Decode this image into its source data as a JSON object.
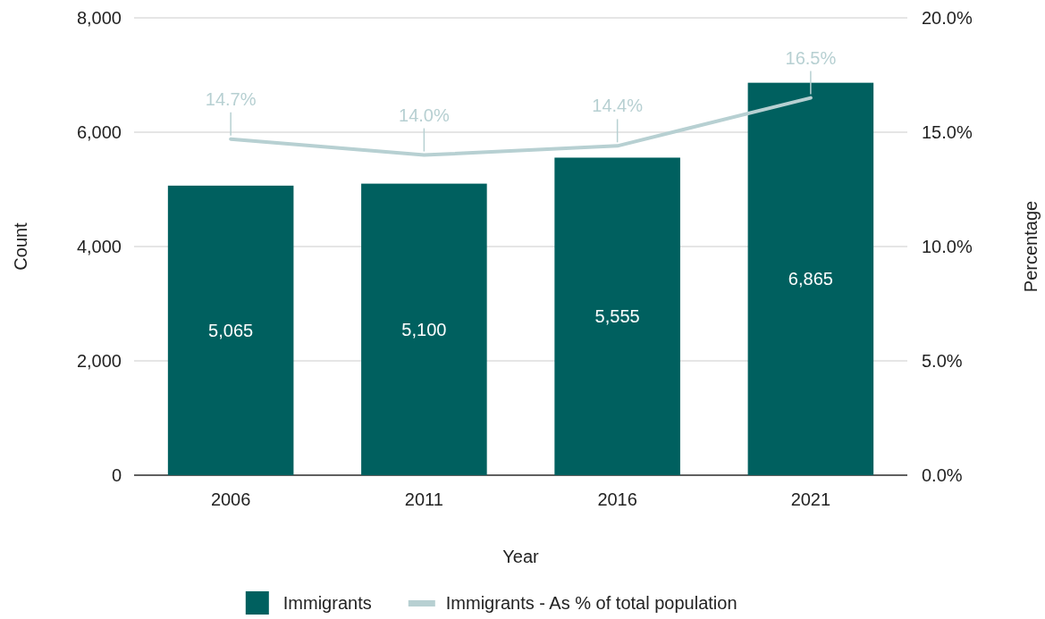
{
  "chart_data": {
    "type": "bar",
    "categories": [
      "2006",
      "2011",
      "2016",
      "2021"
    ],
    "xlabel": "Year",
    "ylabel": "Count",
    "y2label": "Percentage",
    "series": [
      {
        "name": "Immigrants",
        "color": "#00605f",
        "values": [
          5065,
          5100,
          5555,
          6865
        ],
        "value_labels": [
          "5,065",
          "5,100",
          "5,555",
          "6,865"
        ]
      },
      {
        "name": "Immigrants - As % of total population",
        "type": "line",
        "axis": "y2",
        "color": "#b7d0d2",
        "values": [
          14.7,
          14.0,
          14.4,
          16.5
        ],
        "value_labels": [
          "14.7%",
          "14.0%",
          "14.4%",
          "16.5%"
        ]
      }
    ],
    "ylim": [
      0,
      8000
    ],
    "yticks": [
      {
        "value": 0,
        "label": "0"
      },
      {
        "value": 2000,
        "label": "2,000"
      },
      {
        "value": 4000,
        "label": "4,000"
      },
      {
        "value": 6000,
        "label": "6,000"
      },
      {
        "value": 8000,
        "label": "8,000"
      }
    ],
    "y2lim": [
      0,
      20
    ],
    "y2ticks": [
      {
        "value": 0,
        "label": "0.0%"
      },
      {
        "value": 5,
        "label": "5.0%"
      },
      {
        "value": 10,
        "label": "10.0%"
      },
      {
        "value": 15,
        "label": "15.0%"
      },
      {
        "value": 20,
        "label": "20.0%"
      }
    ],
    "grid": "y",
    "legend": "bottom",
    "marker": "none"
  }
}
